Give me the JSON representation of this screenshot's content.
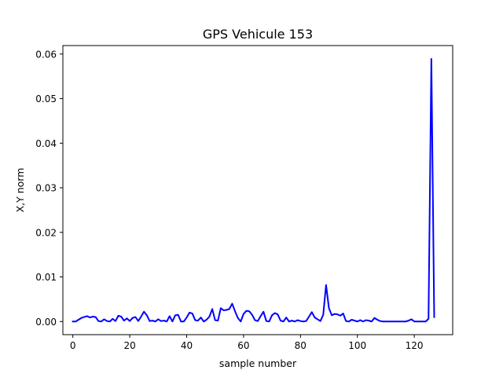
{
  "chart_data": {
    "type": "line",
    "title": "GPS Vehicule 153",
    "xlabel": "sample number",
    "ylabel": "X,Y norm",
    "xlim": [
      -3.5,
      133.5
    ],
    "ylim": [
      -0.00295,
      0.0619
    ],
    "xticks": [
      0,
      20,
      40,
      60,
      80,
      100,
      120
    ],
    "yticks": [
      0.0,
      0.01,
      0.02,
      0.03,
      0.04,
      0.05,
      0.06
    ],
    "xtick_labels": [
      "0",
      "20",
      "40",
      "60",
      "80",
      "100",
      "120"
    ],
    "ytick_labels": [
      "0.00",
      "0.01",
      "0.02",
      "0.03",
      "0.04",
      "0.05",
      "0.06"
    ],
    "grid": false,
    "series": [
      {
        "color": "#0000ff",
        "x": [
          0,
          1,
          2,
          3,
          4,
          5,
          6,
          7,
          8,
          9,
          10,
          11,
          12,
          13,
          14,
          15,
          16,
          17,
          18,
          19,
          20,
          21,
          22,
          23,
          24,
          25,
          26,
          27,
          28,
          29,
          30,
          31,
          32,
          33,
          34,
          35,
          36,
          37,
          38,
          39,
          40,
          41,
          42,
          43,
          44,
          45,
          46,
          47,
          48,
          49,
          50,
          51,
          52,
          53,
          54,
          55,
          56,
          57,
          58,
          59,
          60,
          61,
          62,
          63,
          64,
          65,
          66,
          67,
          68,
          69,
          70,
          71,
          72,
          73,
          74,
          75,
          76,
          77,
          78,
          79,
          80,
          81,
          82,
          83,
          84,
          85,
          86,
          87,
          88,
          89,
          90,
          91,
          92,
          93,
          94,
          95,
          96,
          97,
          98,
          99,
          100,
          101,
          102,
          103,
          104,
          105,
          106,
          107,
          108,
          109,
          110,
          111,
          112,
          113,
          114,
          115,
          116,
          117,
          118,
          119,
          120,
          121,
          122,
          123,
          124,
          125,
          126,
          127
        ],
        "y": [
          0.0,
          0.0,
          0.0004,
          0.0008,
          0.001,
          0.0012,
          0.0009,
          0.0011,
          0.001,
          0.0001,
          0.0,
          0.0005,
          0.0001,
          0.0,
          0.0006,
          0.0001,
          0.0013,
          0.0011,
          0.0002,
          0.0007,
          0.0001,
          0.0008,
          0.001,
          0.0001,
          0.0011,
          0.0022,
          0.0014,
          0.0001,
          0.0002,
          0.0,
          0.0005,
          0.0001,
          0.0002,
          0.0,
          0.0012,
          0.0,
          0.0014,
          0.0015,
          0.0,
          0.0,
          0.0009,
          0.002,
          0.0018,
          0.0003,
          0.0002,
          0.0009,
          0.0,
          0.0004,
          0.0011,
          0.0028,
          0.0003,
          0.0002,
          0.003,
          0.0025,
          0.0026,
          0.0028,
          0.004,
          0.0023,
          0.0008,
          0.0,
          0.0017,
          0.0024,
          0.0023,
          0.0015,
          0.0003,
          0.0001,
          0.0012,
          0.0022,
          0.0001,
          0.0,
          0.0014,
          0.0019,
          0.0016,
          0.0002,
          0.0,
          0.0009,
          0.0,
          0.0002,
          0.0,
          0.0003,
          0.0001,
          0.0,
          0.0001,
          0.0011,
          0.0021,
          0.0009,
          0.0005,
          0.0001,
          0.0015,
          0.0082,
          0.003,
          0.0014,
          0.0017,
          0.0016,
          0.0013,
          0.0018,
          0.0001,
          0.0,
          0.0004,
          0.0002,
          0.0,
          0.0003,
          0.0,
          0.0003,
          0.0002,
          0.0,
          0.0008,
          0.0004,
          0.0001,
          0.0,
          0.0,
          0.0,
          0.0,
          0.0,
          0.0,
          0.0,
          0.0,
          0.0,
          0.0002,
          0.0005,
          0.0,
          0.0,
          0.0,
          0.0,
          0.0,
          0.0006,
          0.0589,
          0.001
        ]
      }
    ]
  }
}
